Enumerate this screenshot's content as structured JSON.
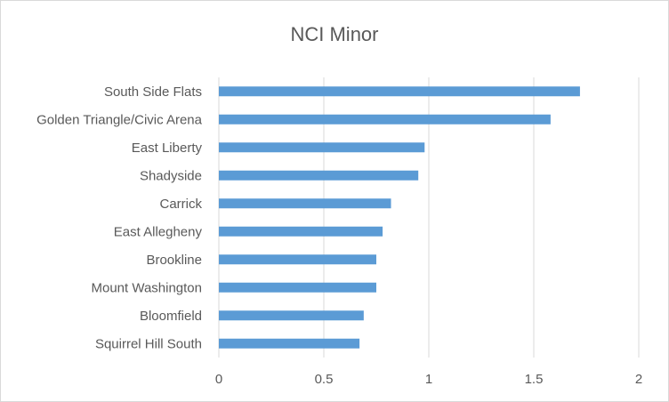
{
  "chart_data": {
    "type": "bar",
    "orientation": "horizontal",
    "title": "NCI Minor",
    "xlabel": "",
    "ylabel": "",
    "categories": [
      "South Side Flats",
      "Golden Triangle/Civic Arena",
      "East Liberty",
      "Shadyside",
      "Carrick",
      "East Allegheny",
      "Brookline",
      "Mount Washington",
      "Bloomfield",
      "Squirrel Hill South"
    ],
    "values": [
      1.72,
      1.58,
      0.98,
      0.95,
      0.82,
      0.78,
      0.75,
      0.75,
      0.69,
      0.67
    ],
    "xlim": [
      0,
      2
    ],
    "x_ticks": [
      "0",
      "0.5",
      "1",
      "1.5",
      "2"
    ],
    "grid": "vertical",
    "legend": "none",
    "bar_color": "#5b9bd5",
    "grid_color": "#d9d9d9",
    "text_color": "#595959"
  }
}
